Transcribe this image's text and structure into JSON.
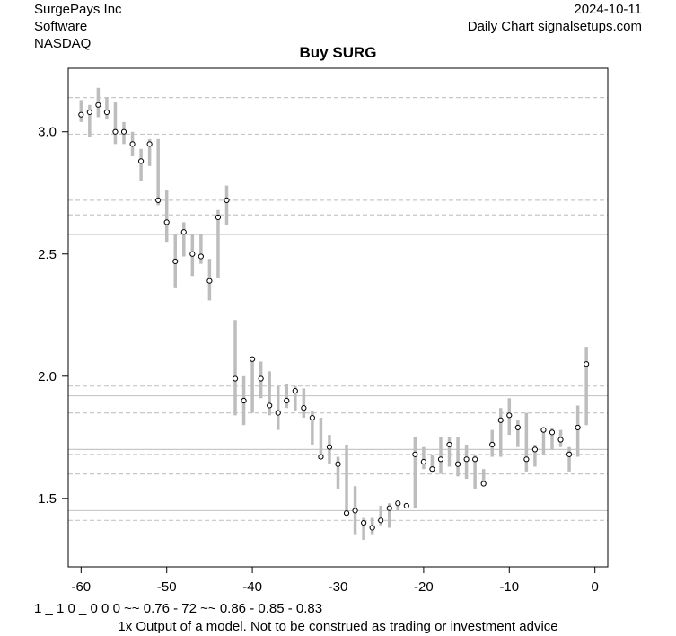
{
  "header": {
    "company": "SurgePays Inc",
    "sector": "Software",
    "exchange": "NASDAQ",
    "date": "2024-10-11",
    "source": "Daily Chart signalsetups.com"
  },
  "footer": {
    "code": "1 _ 1 0 _ 0 0 0 ~~ 0.76 - 72 ~~ 0.86 - 0.85 - 0.83",
    "disclaimer": "1x Output of a model. Not to be construed as trading or investment advice"
  },
  "chart_data": {
    "type": "scatter",
    "title": "Buy SURG",
    "xlabel": "",
    "ylabel": "",
    "xlim": [
      -61.5,
      1.5
    ],
    "ylim": [
      1.22,
      3.26
    ],
    "xticks": [
      -60,
      -50,
      -40,
      -30,
      -20,
      -10,
      0
    ],
    "xtick_labels": [
      "-60",
      "-50",
      "-40",
      "-30",
      "-20",
      "-10",
      "0"
    ],
    "yticks": [
      1.5,
      2.0,
      2.5,
      3.0
    ],
    "ytick_labels": [
      "1.5",
      "2.0",
      "2.5",
      "3.0"
    ],
    "grid": false,
    "colors": {
      "range_bar": "#bdbdbd",
      "point_fill": "#ffffff",
      "point_stroke": "#000000",
      "level_line": "#c8c8c8",
      "dashed_line": "#c8c8c8"
    },
    "solid_levels": [
      2.58,
      1.92,
      1.7,
      1.45
    ],
    "dashed_levels": [
      3.14,
      2.99,
      2.72,
      2.66,
      1.96,
      1.85,
      1.68,
      1.6,
      1.41
    ],
    "series": [
      {
        "x": [
          -60,
          -59,
          -58,
          -57,
          -56,
          -55,
          -54,
          -53,
          -52,
          -51,
          -50,
          -49,
          -48,
          -47,
          -46,
          -45,
          -44,
          -43,
          -42,
          -41,
          -40,
          -39,
          -38,
          -37,
          -36,
          -35,
          -34,
          -33,
          -32,
          -31,
          -30,
          -29,
          -28,
          -27,
          -26,
          -25,
          -24,
          -23,
          -22,
          -21,
          -20,
          -19,
          -18,
          -17,
          -16,
          -15,
          -14,
          -13,
          -12,
          -11,
          -10,
          -9,
          -8,
          -7,
          -6,
          -5,
          -4,
          -3,
          -2,
          -1
        ],
        "close": [
          3.07,
          3.08,
          3.11,
          3.08,
          3.0,
          3.0,
          2.95,
          2.88,
          2.95,
          2.72,
          2.63,
          2.47,
          2.59,
          2.5,
          2.49,
          2.39,
          2.65,
          2.72,
          1.99,
          1.9,
          2.07,
          1.99,
          1.88,
          1.85,
          1.9,
          1.94,
          1.87,
          1.83,
          1.67,
          1.71,
          1.64,
          1.44,
          1.45,
          1.4,
          1.38,
          1.41,
          1.46,
          1.48,
          1.47,
          1.68,
          1.65,
          1.62,
          1.66,
          1.72,
          1.64,
          1.66,
          1.66,
          1.56,
          1.72,
          1.82,
          1.84,
          1.79,
          1.66,
          1.7,
          1.78,
          1.77,
          1.74,
          1.68,
          1.79,
          2.05
        ],
        "high": [
          3.13,
          3.11,
          3.18,
          3.14,
          3.12,
          3.04,
          3.0,
          2.93,
          2.97,
          2.97,
          2.76,
          2.58,
          2.63,
          2.58,
          2.58,
          2.48,
          2.68,
          2.78,
          2.23,
          2.0,
          2.08,
          2.06,
          2.02,
          1.96,
          1.97,
          1.96,
          1.95,
          1.86,
          1.83,
          1.76,
          1.67,
          1.72,
          1.55,
          1.42,
          1.42,
          1.47,
          1.48,
          1.48,
          1.48,
          1.75,
          1.71,
          1.68,
          1.75,
          1.75,
          1.75,
          1.72,
          1.68,
          1.62,
          1.78,
          1.87,
          1.91,
          1.82,
          1.85,
          1.72,
          1.79,
          1.79,
          1.78,
          1.71,
          1.88,
          2.12
        ],
        "low": [
          3.04,
          2.98,
          3.06,
          3.05,
          2.95,
          2.95,
          2.9,
          2.8,
          2.86,
          2.7,
          2.55,
          2.36,
          2.49,
          2.41,
          2.46,
          2.31,
          2.4,
          2.62,
          1.84,
          1.8,
          1.85,
          1.91,
          1.84,
          1.78,
          1.87,
          1.86,
          1.83,
          1.72,
          1.67,
          1.64,
          1.54,
          1.43,
          1.35,
          1.33,
          1.35,
          1.39,
          1.38,
          1.45,
          1.46,
          1.46,
          1.62,
          1.61,
          1.6,
          1.63,
          1.59,
          1.58,
          1.54,
          1.55,
          1.67,
          1.67,
          1.76,
          1.71,
          1.61,
          1.63,
          1.68,
          1.7,
          1.71,
          1.61,
          1.67,
          1.8
        ]
      }
    ]
  }
}
